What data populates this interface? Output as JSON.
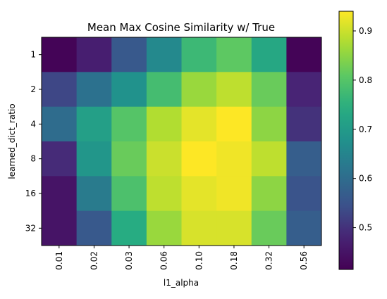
{
  "chart_data": {
    "type": "heatmap",
    "title": "Mean Max Cosine Similarity w/ True",
    "xlabel": "l1_alpha",
    "ylabel": "learned_dict_ratio",
    "x_categories": [
      "0.01",
      "0.02",
      "0.03",
      "0.06",
      "0.10",
      "0.18",
      "0.32",
      "0.56"
    ],
    "y_categories": [
      "1",
      "2",
      "4",
      "8",
      "16",
      "32"
    ],
    "values": [
      [
        0.42,
        0.47,
        0.56,
        0.66,
        0.77,
        0.81,
        0.73,
        0.42
      ],
      [
        0.53,
        0.61,
        0.68,
        0.78,
        0.86,
        0.89,
        0.82,
        0.48
      ],
      [
        0.6,
        0.71,
        0.8,
        0.88,
        0.92,
        0.94,
        0.85,
        0.5
      ],
      [
        0.49,
        0.69,
        0.82,
        0.9,
        0.94,
        0.93,
        0.89,
        0.57
      ],
      [
        0.45,
        0.63,
        0.79,
        0.89,
        0.92,
        0.93,
        0.85,
        0.55
      ],
      [
        0.45,
        0.56,
        0.74,
        0.86,
        0.91,
        0.91,
        0.82,
        0.57
      ]
    ],
    "colormap": "viridis",
    "vmin": 0.415,
    "vmax": 0.94,
    "colorbar_ticks": [
      "0.5",
      "0.6",
      "0.7",
      "0.8",
      "0.9"
    ],
    "grid": false
  }
}
